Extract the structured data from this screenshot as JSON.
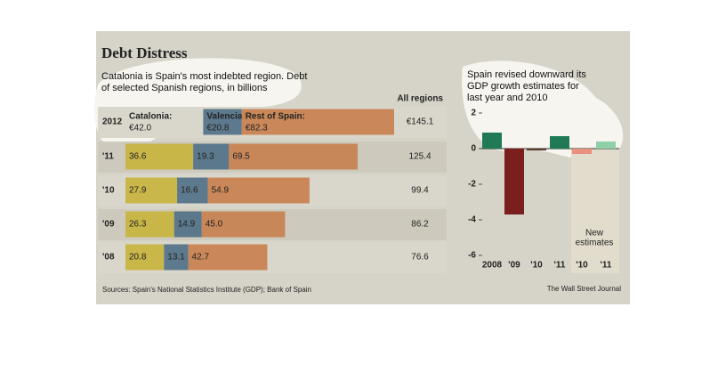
{
  "chart_data": [
    {
      "type": "stacked-bar-horizontal",
      "title": "Debt Distress",
      "subtitle": "Catalonia is Spain's most indebted region. Debt of selected Spanish regions, in billions",
      "categories": [
        "2012",
        "'11",
        "'10",
        "'09",
        "'08"
      ],
      "series": [
        {
          "name": "Catalonia:",
          "color": "#c8b43c",
          "values": [
            42.0,
            36.6,
            27.9,
            26.3,
            20.8
          ],
          "value_labels": [
            "€42.0",
            "36.6",
            "27.9",
            "26.3",
            "20.8"
          ]
        },
        {
          "name": "Valencia:",
          "color": "#4f6f86",
          "values": [
            20.8,
            19.3,
            16.6,
            14.9,
            13.1
          ],
          "value_labels": [
            "€20.8",
            "19.3",
            "16.6",
            "14.9",
            "13.1"
          ]
        },
        {
          "name": "Rest of Spain:",
          "color": "#c8804e",
          "values": [
            82.3,
            69.5,
            54.9,
            45.0,
            42.7
          ],
          "value_labels": [
            "€82.3",
            "69.5",
            "54.9",
            "45.0",
            "42.7"
          ]
        }
      ],
      "totals": {
        "name": "All regions",
        "values": [
          145.1,
          125.4,
          99.4,
          86.2,
          76.6
        ],
        "value_labels": [
          "€145.1",
          "125.4",
          "99.4",
          "86.2",
          "76.6"
        ]
      },
      "source": "Sources: Spain's National Statistics Institute (GDP); Bank of Spain"
    },
    {
      "type": "bar",
      "title": "Spain revised downward its GDP growth estimates for last year and 2010",
      "categories": [
        "2008",
        "'09",
        "'10",
        "'11",
        "'10",
        "'11"
      ],
      "values": [
        0.9,
        -3.7,
        -0.1,
        0.7,
        -0.3,
        0.4
      ],
      "colors": [
        "#1f7a55",
        "#7a1e1e",
        "#5a3a2a",
        "#1f7a55",
        "#e8907c",
        "#8fd0a8"
      ],
      "ylim": [
        -6,
        2
      ],
      "yticks": [
        2,
        0,
        -2,
        -4,
        -6
      ],
      "annotation": [
        "New",
        "estimates"
      ],
      "credit": "The Wall Street Journal"
    }
  ]
}
